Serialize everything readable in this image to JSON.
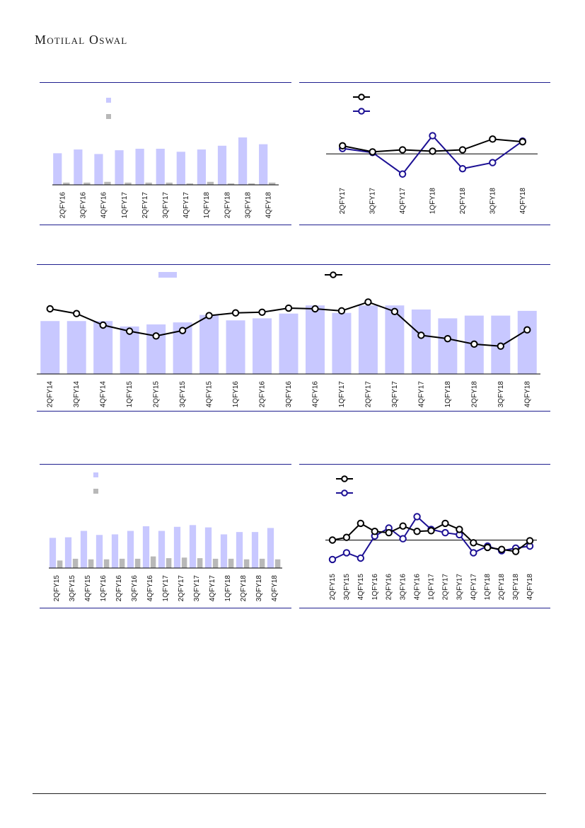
{
  "header": {
    "brand": "Motilal Oswal"
  },
  "colors": {
    "bar_primary": "#c8c8ff",
    "bar_secondary": "#b8b8b8",
    "line_black": "#000000",
    "line_navy": "#1c1094",
    "rule_navy": "#1f1f8f",
    "axis": "#000000"
  },
  "chart_data": [
    {
      "id": "c1",
      "type": "bar",
      "categories": [
        "2QFY16",
        "3QFY16",
        "4QFY16",
        "1QFY17",
        "2QFY17",
        "3QFY17",
        "4QFY17",
        "1QFY18",
        "2QFY18",
        "3QFY18",
        "4QFY18"
      ],
      "series": [
        {
          "values": [
            42,
            47,
            41,
            46,
            48,
            48,
            44,
            47,
            52,
            63,
            54
          ]
        },
        {
          "values": [
            3,
            3,
            4,
            3,
            3,
            3,
            2,
            4,
            2,
            2,
            3
          ]
        }
      ],
      "ylim": [
        0,
        80
      ],
      "legend": "top-left"
    },
    {
      "id": "c2",
      "type": "line",
      "categories": [
        "2QFY17",
        "3QFY17",
        "4QFY17",
        "1QFY18",
        "2QFY18",
        "3QFY18",
        "4QFY18"
      ],
      "series": [
        {
          "values": [
            12,
            3,
            6,
            4,
            6,
            22,
            18
          ]
        },
        {
          "values": [
            8,
            2,
            -30,
            27,
            -22,
            -13,
            19
          ]
        }
      ],
      "ylim": [
        -45,
        35
      ],
      "legend": "top-left"
    },
    {
      "id": "c3",
      "type": "bar+line",
      "categories": [
        "2QFY14",
        "3QFY14",
        "4QFY14",
        "1QFY15",
        "2QFY15",
        "3QFY15",
        "4QFY15",
        "1QFY16",
        "2QFY16",
        "3QFY16",
        "4QFY16",
        "1QFY17",
        "2QFY17",
        "3QFY17",
        "4QFY17",
        "1QFY18",
        "2QFY18",
        "3QFY18",
        "4QFY18"
      ],
      "series": [
        {
          "type": "bar",
          "values": [
            78,
            78,
            78,
            70,
            73,
            76,
            87,
            79,
            82,
            89,
            101,
            90,
            101,
            101,
            95,
            82,
            86,
            86,
            93
          ]
        },
        {
          "type": "line",
          "values": [
            96,
            89,
            72,
            63,
            56,
            64,
            86,
            90,
            91,
            97,
            96,
            93,
            106,
            92,
            57,
            52,
            44,
            41,
            65
          ]
        }
      ],
      "ylim": [
        0,
        120
      ],
      "legend": "top"
    },
    {
      "id": "c4",
      "type": "bar",
      "categories": [
        "2QFY15",
        "3QFY15",
        "4QFY15",
        "1QFY16",
        "2QFY16",
        "3QFY16",
        "4QFY16",
        "1QFY17",
        "2QFY17",
        "3QFY17",
        "4QFY17",
        "1QFY18",
        "2QFY18",
        "3QFY18",
        "4QFY18"
      ],
      "series": [
        {
          "values": [
            52,
            53,
            64,
            57,
            58,
            64,
            72,
            64,
            71,
            74,
            70,
            58,
            62,
            62,
            69
          ]
        },
        {
          "values": [
            13,
            16,
            15,
            15,
            16,
            16,
            20,
            17,
            18,
            17,
            16,
            16,
            15,
            16,
            15
          ]
        }
      ],
      "ylim": [
        0,
        100
      ],
      "legend": "top-left"
    },
    {
      "id": "c5",
      "type": "line",
      "categories": [
        "2QFY15",
        "3QFY15",
        "4QFY15",
        "1QFY16",
        "2QFY16",
        "3QFY16",
        "4QFY16",
        "1QFY17",
        "2QFY17",
        "3QFY17",
        "4QFY17",
        "1QFY18",
        "2QFY18",
        "3QFY18",
        "4QFY18"
      ],
      "series": [
        {
          "values": [
            0,
            4,
            25,
            13,
            11,
            21,
            13,
            14,
            25,
            16,
            -4,
            -11,
            -14,
            -17,
            -1
          ]
        },
        {
          "values": [
            -29,
            -19,
            -27,
            6,
            18,
            2,
            35,
            16,
            11,
            8,
            -19,
            -9,
            -16,
            -12,
            -9
          ]
        }
      ],
      "ylim": [
        -45,
        45
      ],
      "legend": "top-left"
    }
  ]
}
